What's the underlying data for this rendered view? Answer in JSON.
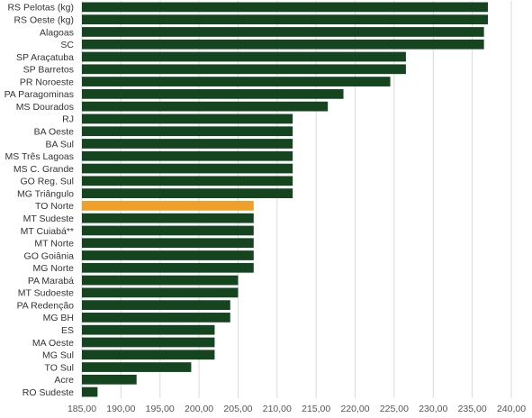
{
  "chart_data": {
    "type": "bar",
    "orientation": "horizontal",
    "categories": [
      "RS Pelotas (kg)",
      "RS Oeste (kg)",
      "Alagoas",
      "SC",
      "SP Araçatuba",
      "SP Barretos",
      "PR Noroeste",
      "PA Paragominas",
      "MS Dourados",
      "RJ",
      "BA Oeste",
      "BA Sul",
      "MS Três Lagoas",
      "MS C. Grande",
      "GO Reg. Sul",
      "MG Triângulo",
      "TO Norte",
      "MT Sudeste",
      "MT Cuiabá**",
      "MT Norte",
      "GO Goiânia",
      "MG Norte",
      "PA Marabá",
      "MT Sudoeste",
      "PA Redenção",
      "MG BH",
      "ES",
      "MA Oeste",
      "MG Sul",
      "TO Sul",
      "Acre",
      "RO Sudeste"
    ],
    "values": [
      237.0,
      237.0,
      236.5,
      236.5,
      226.5,
      226.5,
      224.5,
      218.5,
      216.5,
      212.0,
      212.0,
      212.0,
      212.0,
      212.0,
      212.0,
      212.0,
      207.0,
      207.0,
      207.0,
      207.0,
      207.0,
      207.0,
      205.0,
      205.0,
      204.0,
      204.0,
      202.0,
      202.0,
      202.0,
      199.0,
      192.0,
      187.0
    ],
    "highlight_index": 16,
    "colors": {
      "bar": "#14451f",
      "highlight": "#f0a02a",
      "grid": "#d9d9d9"
    },
    "xlim": [
      185,
      240
    ],
    "xticks": [
      "185,00",
      "190,00",
      "195,00",
      "200,00",
      "205,00",
      "210,00",
      "215,00",
      "220,00",
      "225,00",
      "230,00",
      "235,00",
      "240,00"
    ],
    "xtick_values": [
      185,
      190,
      195,
      200,
      205,
      210,
      215,
      220,
      225,
      230,
      235,
      240
    ],
    "grid": true,
    "legend": "none"
  }
}
